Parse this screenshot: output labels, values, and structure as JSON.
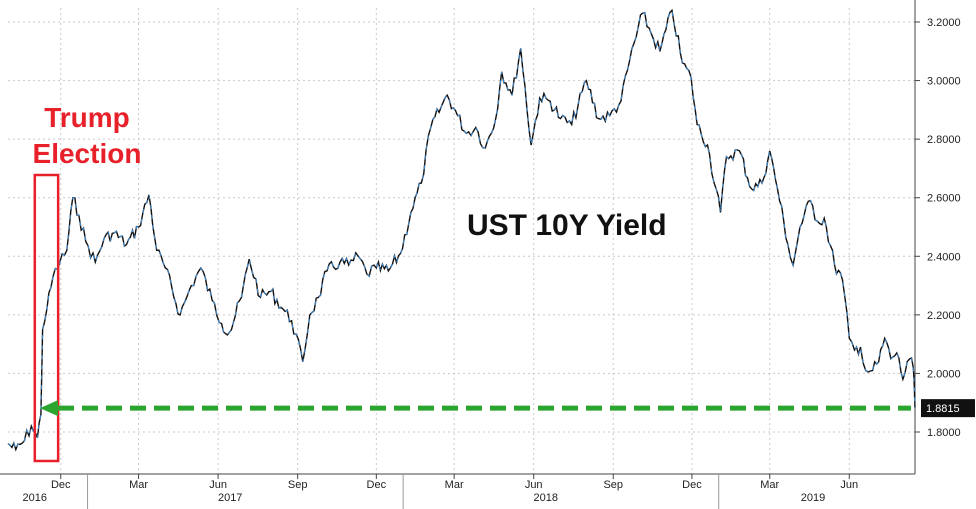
{
  "chart_data": {
    "type": "line",
    "title": "UST 10Y Yield",
    "annotation": [
      "Trump",
      "Election"
    ],
    "last_value_label": "1.8815",
    "ylim": [
      1.68,
      3.28
    ],
    "y_ticks": [
      "1.8000",
      "2.0000",
      "2.2000",
      "2.4000",
      "2.6000",
      "2.8000",
      "3.0000",
      "3.2000"
    ],
    "y_tick_values": [
      1.8,
      2.0,
      2.2,
      2.4,
      2.6,
      2.8,
      3.0,
      3.2
    ],
    "x_range": [
      "2016-10-01",
      "2019-08-16"
    ],
    "month_ticks": [
      {
        "label": "Dec",
        "date": "2016-12-01"
      },
      {
        "label": "Mar",
        "date": "2017-03-01"
      },
      {
        "label": "Jun",
        "date": "2017-06-01"
      },
      {
        "label": "Sep",
        "date": "2017-09-01"
      },
      {
        "label": "Dec",
        "date": "2017-12-01"
      },
      {
        "label": "Mar",
        "date": "2018-03-01"
      },
      {
        "label": "Jun",
        "date": "2018-06-01"
      },
      {
        "label": "Sep",
        "date": "2018-09-01"
      },
      {
        "label": "Dec",
        "date": "2018-12-01"
      },
      {
        "label": "Mar",
        "date": "2019-03-01"
      },
      {
        "label": "Jun",
        "date": "2019-06-01"
      }
    ],
    "year_labels": [
      {
        "label": "2016",
        "date": "2016-11-01"
      },
      {
        "label": "2017",
        "date": "2017-06-15"
      },
      {
        "label": "2018",
        "date": "2018-06-15"
      },
      {
        "label": "2019",
        "date": "2019-04-20"
      }
    ],
    "year_dividers": [
      "2017-01-01",
      "2018-01-01",
      "2019-01-01"
    ],
    "election_box": {
      "start": "2016-11-01",
      "end": "2016-11-28"
    },
    "reference_level": 1.8815,
    "series": [
      {
        "values": [
          [
            "2016-10-01",
            1.76
          ],
          [
            "2016-10-10",
            1.74
          ],
          [
            "2016-10-20",
            1.77
          ],
          [
            "2016-10-28",
            1.82
          ],
          [
            "2016-11-04",
            1.78
          ],
          [
            "2016-11-08",
            1.86
          ],
          [
            "2016-11-10",
            2.15
          ],
          [
            "2016-11-15",
            2.22
          ],
          [
            "2016-11-22",
            2.33
          ],
          [
            "2016-11-30",
            2.38
          ],
          [
            "2016-12-08",
            2.42
          ],
          [
            "2016-12-15",
            2.6
          ],
          [
            "2016-12-22",
            2.54
          ],
          [
            "2016-12-30",
            2.45
          ],
          [
            "2017-01-10",
            2.38
          ],
          [
            "2017-01-20",
            2.46
          ],
          [
            "2017-02-01",
            2.48
          ],
          [
            "2017-02-15",
            2.44
          ],
          [
            "2017-03-01",
            2.5
          ],
          [
            "2017-03-13",
            2.61
          ],
          [
            "2017-03-22",
            2.42
          ],
          [
            "2017-04-01",
            2.36
          ],
          [
            "2017-04-18",
            2.2
          ],
          [
            "2017-05-01",
            2.3
          ],
          [
            "2017-05-12",
            2.36
          ],
          [
            "2017-05-25",
            2.25
          ],
          [
            "2017-06-05",
            2.17
          ],
          [
            "2017-06-14",
            2.14
          ],
          [
            "2017-06-28",
            2.26
          ],
          [
            "2017-07-07",
            2.39
          ],
          [
            "2017-07-20",
            2.26
          ],
          [
            "2017-08-01",
            2.28
          ],
          [
            "2017-08-15",
            2.22
          ],
          [
            "2017-08-25",
            2.18
          ],
          [
            "2017-09-07",
            2.04
          ],
          [
            "2017-09-15",
            2.2
          ],
          [
            "2017-09-25",
            2.26
          ],
          [
            "2017-10-05",
            2.35
          ],
          [
            "2017-10-20",
            2.38
          ],
          [
            "2017-10-30",
            2.37
          ],
          [
            "2017-11-10",
            2.4
          ],
          [
            "2017-11-20",
            2.34
          ],
          [
            "2017-12-01",
            2.36
          ],
          [
            "2017-12-15",
            2.35
          ],
          [
            "2017-12-29",
            2.41
          ],
          [
            "2018-01-10",
            2.55
          ],
          [
            "2018-01-22",
            2.65
          ],
          [
            "2018-02-02",
            2.84
          ],
          [
            "2018-02-14",
            2.91
          ],
          [
            "2018-02-21",
            2.95
          ],
          [
            "2018-03-05",
            2.88
          ],
          [
            "2018-03-15",
            2.82
          ],
          [
            "2018-03-26",
            2.84
          ],
          [
            "2018-04-06",
            2.77
          ],
          [
            "2018-04-18",
            2.87
          ],
          [
            "2018-04-25",
            3.03
          ],
          [
            "2018-05-07",
            2.95
          ],
          [
            "2018-05-17",
            3.11
          ],
          [
            "2018-05-29",
            2.78
          ],
          [
            "2018-06-08",
            2.94
          ],
          [
            "2018-06-20",
            2.93
          ],
          [
            "2018-07-02",
            2.87
          ],
          [
            "2018-07-15",
            2.85
          ],
          [
            "2018-08-01",
            3.0
          ],
          [
            "2018-08-15",
            2.87
          ],
          [
            "2018-08-28",
            2.88
          ],
          [
            "2018-09-10",
            2.93
          ],
          [
            "2018-09-20",
            3.07
          ],
          [
            "2018-10-05",
            3.23
          ],
          [
            "2018-10-15",
            3.16
          ],
          [
            "2018-10-25",
            3.1
          ],
          [
            "2018-11-08",
            3.24
          ],
          [
            "2018-11-20",
            3.06
          ],
          [
            "2018-11-30",
            3.01
          ],
          [
            "2018-12-07",
            2.85
          ],
          [
            "2018-12-19",
            2.78
          ],
          [
            "2019-01-03",
            2.55
          ],
          [
            "2019-01-10",
            2.74
          ],
          [
            "2019-01-25",
            2.76
          ],
          [
            "2019-02-08",
            2.63
          ],
          [
            "2019-02-20",
            2.65
          ],
          [
            "2019-03-01",
            2.76
          ],
          [
            "2019-03-10",
            2.63
          ],
          [
            "2019-03-22",
            2.44
          ],
          [
            "2019-03-28",
            2.37
          ],
          [
            "2019-04-05",
            2.5
          ],
          [
            "2019-04-17",
            2.59
          ],
          [
            "2019-04-25",
            2.52
          ],
          [
            "2019-05-03",
            2.53
          ],
          [
            "2019-05-15",
            2.37
          ],
          [
            "2019-05-24",
            2.32
          ],
          [
            "2019-06-01",
            2.12
          ],
          [
            "2019-06-07",
            2.08
          ],
          [
            "2019-06-14",
            2.09
          ],
          [
            "2019-06-20",
            2.01
          ],
          [
            "2019-06-28",
            2.01
          ],
          [
            "2019-07-05",
            2.04
          ],
          [
            "2019-07-12",
            2.12
          ],
          [
            "2019-07-19",
            2.05
          ],
          [
            "2019-07-26",
            2.07
          ],
          [
            "2019-08-02",
            1.98
          ],
          [
            "2019-08-07",
            2.04
          ],
          [
            "2019-08-10",
            2.05
          ],
          [
            "2019-08-14",
            2.02
          ],
          [
            "2019-08-16",
            1.8815
          ]
        ]
      }
    ],
    "colors": {
      "line_dark": "#111111",
      "line_blue": "#3d8fd9",
      "annotation_red": "#e8202a",
      "reference_green": "#2ca52f",
      "last_label_bg": "#111111",
      "grid": "#c9c9c9"
    },
    "grid": true,
    "legend": "none"
  }
}
